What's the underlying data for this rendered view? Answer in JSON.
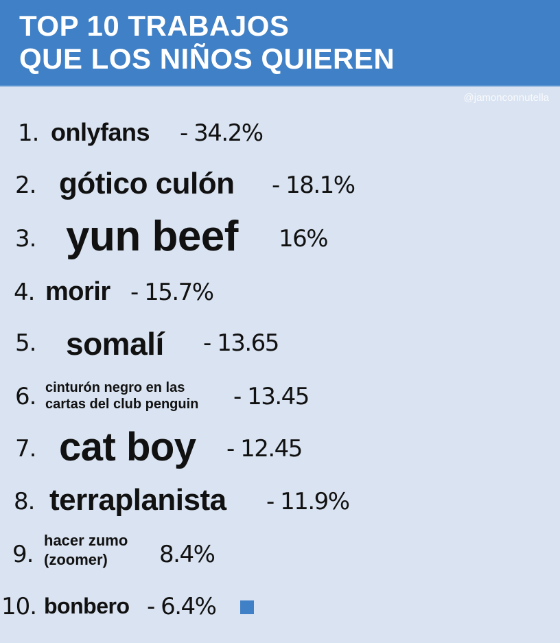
{
  "header": {
    "title_line1": "TOP 10 TRABAJOS",
    "title_line2": "QUE LOS NIÑOS QUIEREN",
    "watermark": "@jamonconnutella",
    "accent_color": "#3f80c6"
  },
  "items": [
    {
      "rank": "1.",
      "job": "onlyfans",
      "value": "- 34.2%"
    },
    {
      "rank": "2.",
      "job": "gótico culón",
      "value": "- 18.1%"
    },
    {
      "rank": "3.",
      "job": "yun beef",
      "value": "16%"
    },
    {
      "rank": "4.",
      "job": "morir",
      "value": "- 15.7%"
    },
    {
      "rank": "5.",
      "job": "somalí",
      "value": "- 13.65"
    },
    {
      "rank": "6.",
      "job_line1": "cinturón negro en las",
      "job_line2": "cartas del club penguin",
      "value": "- 13.45"
    },
    {
      "rank": "7.",
      "job": "cat boy",
      "value": "- 12.45"
    },
    {
      "rank": "8.",
      "job": "terraplanista",
      "value": "- 11.9%"
    },
    {
      "rank": "9.",
      "job_line1": "hacer zumo",
      "job_line2": "(zoomer)",
      "value": "8.4%"
    },
    {
      "rank": "10.",
      "job": "bonbero",
      "value": "- 6.4%"
    }
  ]
}
